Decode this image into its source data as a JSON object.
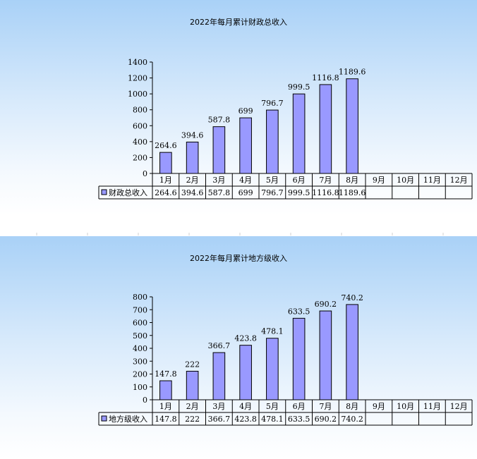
{
  "chart_data": [
    {
      "type": "bar",
      "title": "2022年每月累计财政总收入",
      "categories": [
        "1月",
        "2月",
        "3月",
        "4月",
        "5月",
        "6月",
        "7月",
        "8月",
        "9月",
        "10月",
        "11月",
        "12月"
      ],
      "series": [
        {
          "name": "财政总收入",
          "values": [
            264.6,
            394.6,
            587.8,
            699,
            796.7,
            999.5,
            1116.8,
            1189.6,
            null,
            null,
            null,
            null
          ]
        }
      ],
      "value_labels": [
        "264.6",
        "394.6",
        "587.8",
        "699",
        "796.7",
        "999.5",
        "1116.8",
        "1189.6",
        "",
        "",
        "",
        ""
      ],
      "yticks": [
        "0",
        "200",
        "400",
        "600",
        "800",
        "1000",
        "1200",
        "1400"
      ],
      "ylim": [
        0,
        1400
      ],
      "bar_color": "#9999ff",
      "data_table": true
    },
    {
      "type": "bar",
      "title": "2022年每月累计地方级收入",
      "categories": [
        "1月",
        "2月",
        "3月",
        "4月",
        "5月",
        "6月",
        "7月",
        "8月",
        "9月",
        "10月",
        "11月",
        "12月"
      ],
      "series": [
        {
          "name": "地方级收入",
          "values": [
            147.8,
            222,
            366.7,
            423.8,
            478.1,
            633.5,
            690.2,
            740.2,
            null,
            null,
            null,
            null
          ]
        }
      ],
      "value_labels": [
        "147.8",
        "222",
        "366.7",
        "423.8",
        "478.1",
        "633.5",
        "690.2",
        "740.2",
        "",
        "",
        "",
        ""
      ],
      "yticks": [
        "0",
        "100",
        "200",
        "300",
        "400",
        "500",
        "600",
        "700",
        "800"
      ],
      "ylim": [
        0,
        800
      ],
      "bar_color": "#9999ff",
      "data_table": true
    }
  ]
}
